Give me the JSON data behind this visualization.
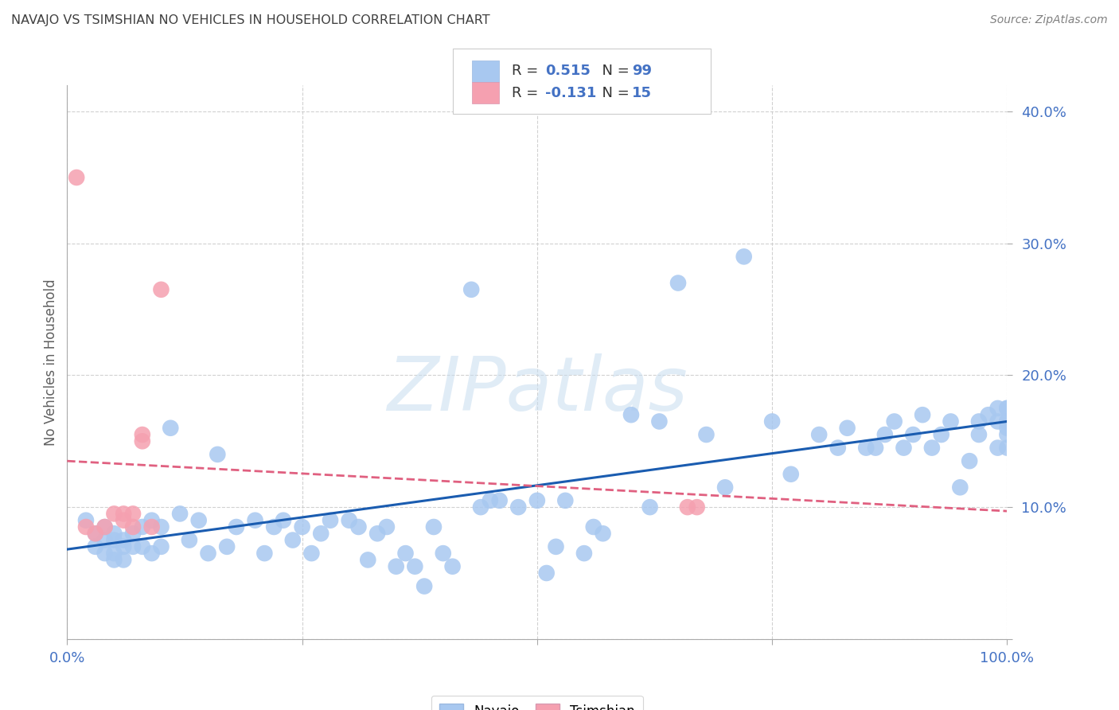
{
  "title": "NAVAJO VS TSIMSHIAN NO VEHICLES IN HOUSEHOLD CORRELATION CHART",
  "source": "Source: ZipAtlas.com",
  "ylabel": "No Vehicles in Household",
  "watermark": "ZIPatlas",
  "navajo_R": 0.515,
  "navajo_N": 99,
  "tsimshian_R": -0.131,
  "tsimshian_N": 15,
  "navajo_color": "#a8c8f0",
  "tsimshian_color": "#f5a0b0",
  "navajo_line_color": "#1a5cb0",
  "tsimshian_line_color": "#e06080",
  "xlim": [
    0.0,
    1.0
  ],
  "ylim": [
    0.0,
    0.42
  ],
  "xticks": [
    0.0,
    0.25,
    0.5,
    0.75,
    1.0
  ],
  "xtick_labels": [
    "0.0%",
    "",
    "",
    "",
    "100.0%"
  ],
  "yticks": [
    0.0,
    0.1,
    0.2,
    0.3,
    0.4
  ],
  "ytick_labels": [
    "",
    "10.0%",
    "20.0%",
    "30.0%",
    "40.0%"
  ],
  "navajo_x": [
    0.02,
    0.03,
    0.03,
    0.04,
    0.04,
    0.04,
    0.05,
    0.05,
    0.05,
    0.05,
    0.06,
    0.06,
    0.06,
    0.07,
    0.07,
    0.08,
    0.08,
    0.09,
    0.09,
    0.1,
    0.1,
    0.11,
    0.12,
    0.13,
    0.14,
    0.15,
    0.16,
    0.17,
    0.18,
    0.2,
    0.21,
    0.22,
    0.23,
    0.24,
    0.25,
    0.26,
    0.27,
    0.28,
    0.3,
    0.31,
    0.32,
    0.33,
    0.34,
    0.35,
    0.36,
    0.37,
    0.38,
    0.39,
    0.4,
    0.41,
    0.43,
    0.44,
    0.45,
    0.46,
    0.48,
    0.5,
    0.51,
    0.52,
    0.53,
    0.55,
    0.56,
    0.57,
    0.6,
    0.62,
    0.63,
    0.65,
    0.68,
    0.7,
    0.72,
    0.75,
    0.77,
    0.8,
    0.82,
    0.83,
    0.85,
    0.86,
    0.87,
    0.88,
    0.89,
    0.9,
    0.91,
    0.92,
    0.93,
    0.94,
    0.95,
    0.96,
    0.97,
    0.97,
    0.98,
    0.99,
    0.99,
    0.99,
    1.0,
    1.0,
    1.0,
    1.0,
    1.0,
    1.0,
    1.0
  ],
  "navajo_y": [
    0.09,
    0.08,
    0.07,
    0.085,
    0.075,
    0.065,
    0.08,
    0.075,
    0.065,
    0.06,
    0.075,
    0.07,
    0.06,
    0.08,
    0.07,
    0.085,
    0.07,
    0.09,
    0.065,
    0.085,
    0.07,
    0.16,
    0.095,
    0.075,
    0.09,
    0.065,
    0.14,
    0.07,
    0.085,
    0.09,
    0.065,
    0.085,
    0.09,
    0.075,
    0.085,
    0.065,
    0.08,
    0.09,
    0.09,
    0.085,
    0.06,
    0.08,
    0.085,
    0.055,
    0.065,
    0.055,
    0.04,
    0.085,
    0.065,
    0.055,
    0.265,
    0.1,
    0.105,
    0.105,
    0.1,
    0.105,
    0.05,
    0.07,
    0.105,
    0.065,
    0.085,
    0.08,
    0.17,
    0.1,
    0.165,
    0.27,
    0.155,
    0.115,
    0.29,
    0.165,
    0.125,
    0.155,
    0.145,
    0.16,
    0.145,
    0.145,
    0.155,
    0.165,
    0.145,
    0.155,
    0.17,
    0.145,
    0.155,
    0.165,
    0.115,
    0.135,
    0.155,
    0.165,
    0.17,
    0.145,
    0.165,
    0.175,
    0.145,
    0.155,
    0.165,
    0.175,
    0.16,
    0.175,
    0.165
  ],
  "tsimshian_x": [
    0.01,
    0.02,
    0.03,
    0.04,
    0.05,
    0.06,
    0.06,
    0.07,
    0.07,
    0.08,
    0.08,
    0.09,
    0.66,
    0.67,
    0.1
  ],
  "tsimshian_y": [
    0.35,
    0.085,
    0.08,
    0.085,
    0.095,
    0.095,
    0.09,
    0.095,
    0.085,
    0.15,
    0.155,
    0.085,
    0.1,
    0.1,
    0.265
  ],
  "navajo_trend_x": [
    0.0,
    1.0
  ],
  "navajo_trend_y": [
    0.068,
    0.165
  ],
  "tsimshian_trend_x": [
    0.0,
    1.0
  ],
  "tsimshian_trend_y": [
    0.135,
    0.097
  ],
  "background_color": "#ffffff",
  "grid_color": "#cccccc",
  "title_color": "#404040",
  "axis_tick_color": "#4472c4",
  "source_color": "#808080"
}
